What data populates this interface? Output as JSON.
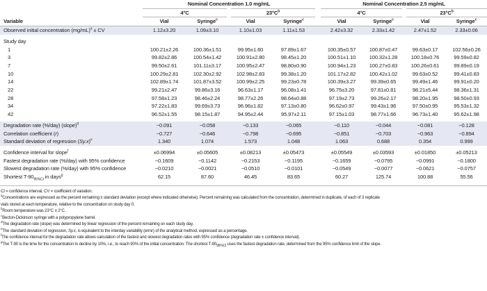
{
  "header": {
    "group1": "Nominal Concentration 1.0 mg/mL",
    "group2": "Nominal Concentration 2.5 mg/mL",
    "temp_4": "4°C",
    "temp_23": "23°C",
    "temp_23_sup": "b",
    "variable": "Variable",
    "vial": "Vial",
    "syringe": "Syringe",
    "syringe_sup": "c"
  },
  "observed": {
    "label": "Observed initial concentration (mg/mL)",
    "sup": "a",
    "suffix": " ± CV",
    "values": [
      "1.12±3.20",
      "1.09±3.10",
      "1.10±1.03",
      "1.11±1.53",
      "2.42±3.32",
      "2.33±1.42",
      "2.47±1.52",
      "2.33±0.06"
    ]
  },
  "study_day_label": "Study day",
  "study_days": [
    {
      "day": "1",
      "values": [
        "100.21±2.26",
        "100.36±1.51",
        "99.95±1.60",
        "97.89±1.67",
        "100.35±0.57",
        "100.87±0.47",
        "99.63±0.17",
        "102.56±0.26"
      ]
    },
    {
      "day": "3",
      "values": [
        "99.82±2.86",
        "100.54±1.42",
        "100.91±2.80",
        "98.45±1.20",
        "100.51±1.10",
        "100.32±1.28",
        "100.18±0.76",
        "99.59±0.82"
      ]
    },
    {
      "day": "7",
      "values": [
        "99.50±2.61",
        "101.11±3.17",
        "100.95±2.47",
        "98.80±0.90",
        "100.94±1.23",
        "100.27±0.83",
        "100.26±0.61",
        "99.89±0.19"
      ]
    },
    {
      "day": "10",
      "values": [
        "100.29±2.81",
        "102.30±2.92",
        "102.98±2.83",
        "99.38±1.20",
        "101.17±2.82",
        "100.42±1.02",
        "99.63±0.52",
        "99.41±0.83"
      ]
    },
    {
      "day": "14",
      "values": [
        "102.89±1.74",
        "101.87±3.52",
        "100.99±2.25",
        "99.23±0.78",
        "100.39±3.27",
        "99.39±0.65",
        "99.49±1.46",
        "99.91±0.20"
      ]
    },
    {
      "day": "22",
      "values": [
        "99.21±2.47",
        "99.86±3.16",
        "96.63±1.17",
        "96.08±1.41",
        "96.75±3.20",
        "97.81±0.81",
        "98.21±5.44",
        "98.36±1.31"
      ]
    },
    {
      "day": "28",
      "values": [
        "97.58±1.23",
        "98.46±2.24",
        "98.77±2.26",
        "98.64±0.88",
        "97.19±2.73",
        "99.26±2.17",
        "98.20±1.95",
        "98.50±0.93"
      ]
    },
    {
      "day": "34",
      "values": [
        "97.22±1.83",
        "99.69±3.73",
        "96.96±1.82",
        "97.13±0.80",
        "96.62±0.97",
        "99.43±1.96",
        "97.50±0.95",
        "95.53±1.32"
      ]
    },
    {
      "day": "42",
      "values": [
        "96.52±1.55",
        "98.15±1.87",
        "94.95±2.44",
        "95.97±2.11",
        "97.15±1.03",
        "98.77±1.66",
        "96.73±1.40",
        "95.62±1.98"
      ]
    }
  ],
  "regression": [
    {
      "label": "Degradation rate (%/day) (slope)",
      "sup": "d",
      "values": [
        "−0.091",
        "−0.058",
        "−0.133",
        "−0.065",
        "−0.110",
        "−0.044",
        "−0.081",
        "−0.128"
      ]
    },
    {
      "label": "Correlation coefficient (",
      "italic": "r",
      "tail": ")",
      "values": [
        "−0.727",
        "−0.646",
        "−0.798",
        "−0.695",
        "−0.851",
        "−0.703",
        "−0.963",
        "−0.894"
      ]
    },
    {
      "label": "Standard deviation of regression (",
      "italic": "Sy.x",
      "tail": ")",
      "sup": "e",
      "values": [
        "1.340",
        "1.074",
        "1.573",
        "1.048",
        "1.063",
        "0.688",
        "0.354",
        "0.999"
      ]
    }
  ],
  "confidence": [
    {
      "label": "Confidence interval for slope",
      "sup": "f",
      "values": [
        "±0.06994",
        "±0.05605",
        "±0.08213",
        "±0.05473",
        "±0.05549",
        "±0.03593",
        "±0.01850",
        "±0.05213"
      ]
    },
    {
      "label": "Fastest degradation rate (%/day) with 95% confidence",
      "values": [
        "−0.1609",
        "−0.1142",
        "−0.2153",
        "−0.1195",
        "−0.1659",
        "−0.0795",
        "−0.0991",
        "−0.1800"
      ]
    },
    {
      "label": "Slowest degradation rate (%/day) with 95% confidence",
      "values": [
        "−0.0210",
        "−0.0021",
        "−0.0510",
        "−0.0101",
        "−0.0549",
        "−0.0077",
        "−0.0621",
        "−0.0757"
      ]
    },
    {
      "label": "Shortest T-90",
      "sub": "95%CI",
      "tail": " in days",
      "sup": "g",
      "values": [
        "62.15",
        "87.60",
        "46.45",
        "83.65",
        "60.27",
        "125.74",
        "100.88",
        "55.56"
      ]
    }
  ],
  "footnotes": {
    "abbrev": "CI = confidence interval, CV = coefficient of variation.",
    "a": "Concentrations are expressed as the percent remaining ± standard deviation (except where indicated otherwise). Percent remaining was calculated from the concentration, determined in duplicate, of each of 3 replicate",
    "a2": "vials stored at each temperature, relative to the concentration on study day 0.",
    "b": "Room temperature was 23°C ± 2°C.",
    "c": "Becton-Dickinson syringe with a polypropylene barrel.",
    "d": "The degradation rate (slope) was determined by linear regression of the percent remaining on each study day.",
    "e_pre": "The standard deviation of regression, ",
    "e_it": "Sy.x",
    "e_post": ", is equivalent to the interday variability (error) of the analytical method, expressed as a percentage.",
    "f": "The confidence interval for the degradation rate allows calculation of the fastest and slowest degradation rates with 95% confidence (degradation rate ± confidence interval).",
    "g_pre": "The T-90 is the time for the concentration to decline by 10%, i.e., to reach 90% of the initial concentration. The shortest T-90",
    "g_sub": "95%CI",
    "g_post": " uses the fastest degradation rate, determined from the 95% confidence limit of the slope."
  }
}
